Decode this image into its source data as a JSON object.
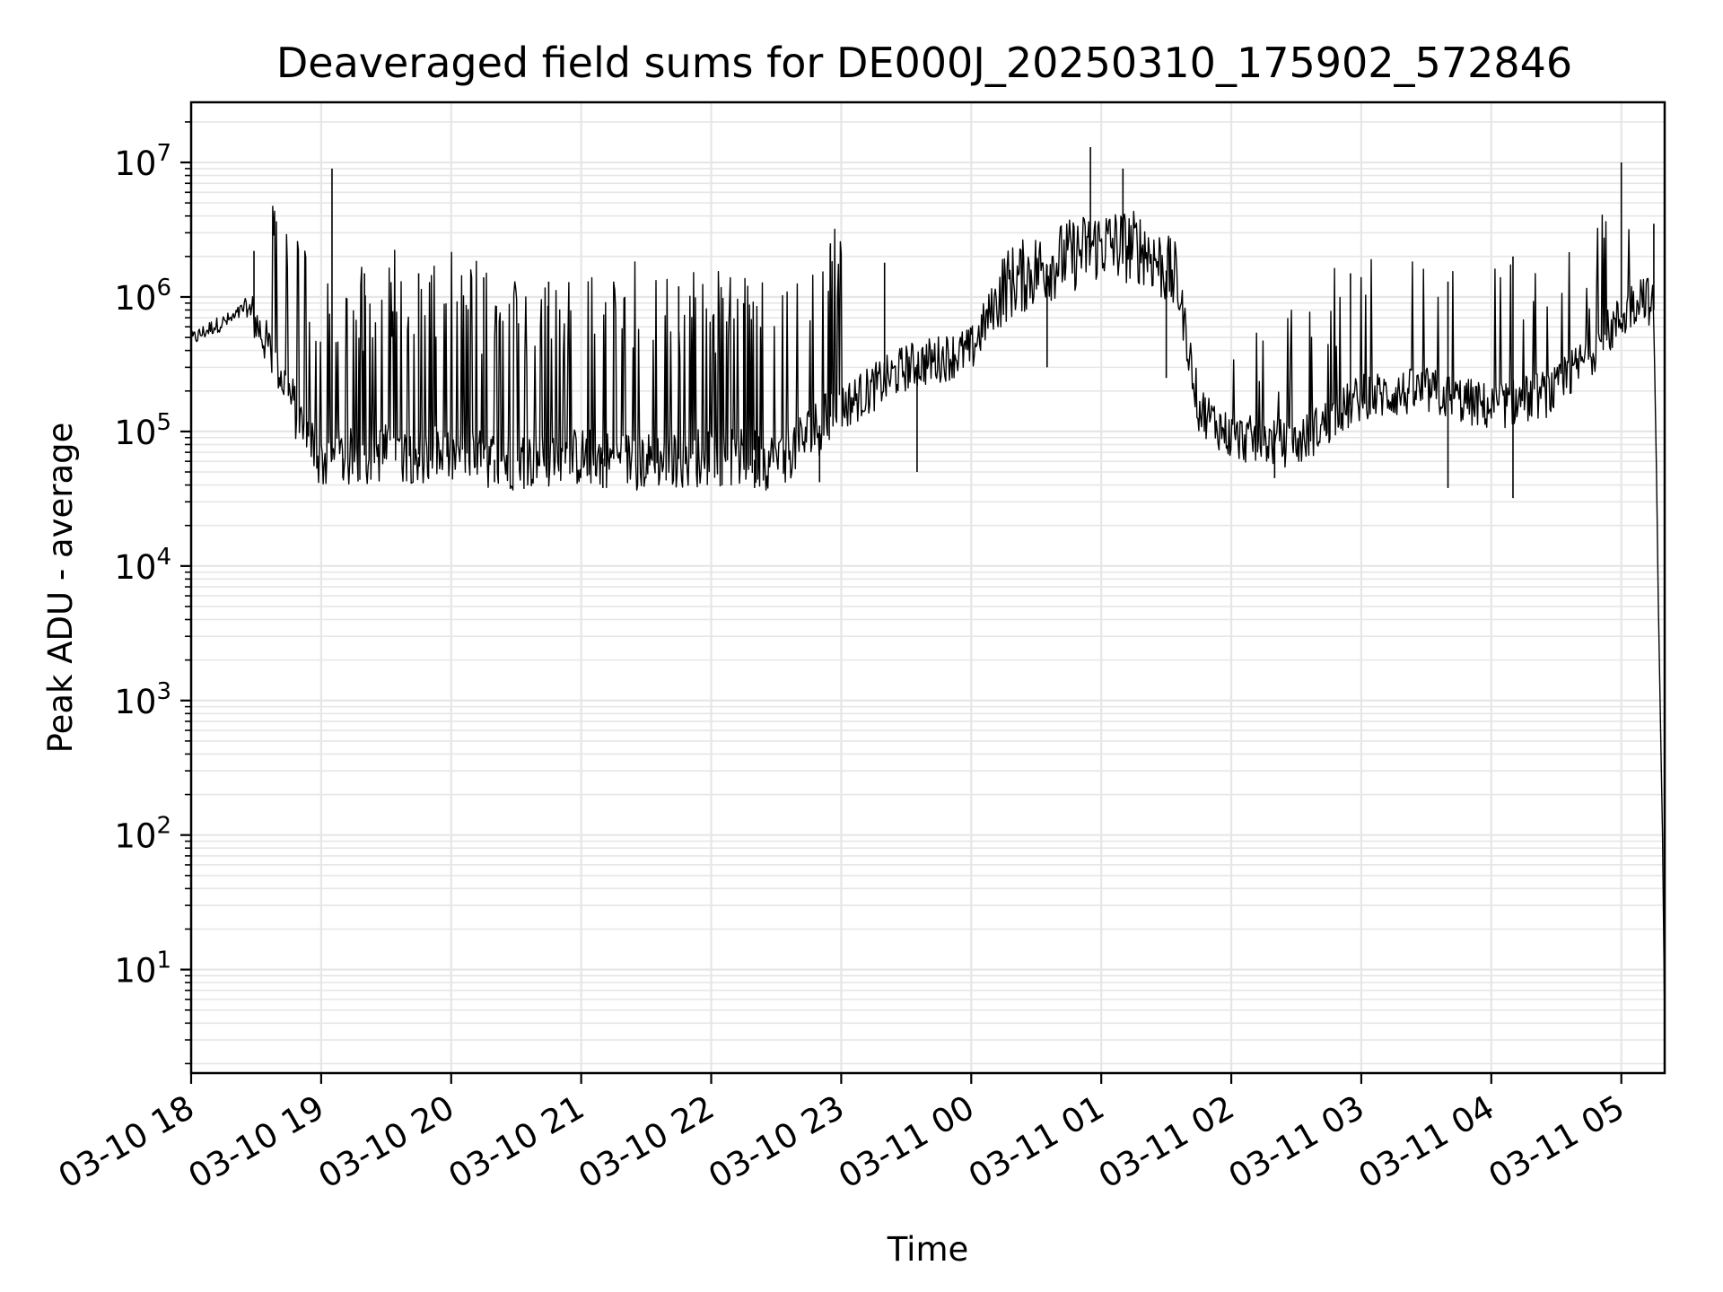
{
  "chart_data": {
    "type": "line",
    "title": "Deaveraged field sums for DE000J_20250310_175902_572846",
    "xlabel": "Time",
    "ylabel": "Peak ADU - average",
    "y_scale": "log",
    "grid": true,
    "line_color": "#000000",
    "grid_color": "#e6e6e6",
    "xlim": [
      "2025-03-10 18:00",
      "2025-03-11 05:20"
    ],
    "ylim": [
      1.7,
      28000000
    ],
    "x_ticks": [
      {
        "value": "2025-03-10 18:00",
        "label": "03-10 18"
      },
      {
        "value": "2025-03-10 19:00",
        "label": "03-10 19"
      },
      {
        "value": "2025-03-10 20:00",
        "label": "03-10 20"
      },
      {
        "value": "2025-03-10 21:00",
        "label": "03-10 21"
      },
      {
        "value": "2025-03-10 22:00",
        "label": "03-10 22"
      },
      {
        "value": "2025-03-10 23:00",
        "label": "03-10 23"
      },
      {
        "value": "2025-03-11 00:00",
        "label": "03-11 00"
      },
      {
        "value": "2025-03-11 01:00",
        "label": "03-11 01"
      },
      {
        "value": "2025-03-11 02:00",
        "label": "03-11 02"
      },
      {
        "value": "2025-03-11 03:00",
        "label": "03-11 03"
      },
      {
        "value": "2025-03-11 04:00",
        "label": "03-11 04"
      },
      {
        "value": "2025-03-11 05:00",
        "label": "03-11 05"
      }
    ],
    "y_ticks": [
      {
        "value": 10,
        "base": "10",
        "exp": "1"
      },
      {
        "value": 100,
        "base": "10",
        "exp": "2"
      },
      {
        "value": 1000,
        "base": "10",
        "exp": "3"
      },
      {
        "value": 10000,
        "base": "10",
        "exp": "4"
      },
      {
        "value": 100000,
        "base": "10",
        "exp": "5"
      },
      {
        "value": 1000000,
        "base": "10",
        "exp": "6"
      },
      {
        "value": 10000000,
        "base": "10",
        "exp": "7"
      }
    ],
    "series": [
      {
        "points": [
          [
            "2025-03-10 18:00",
            480000
          ],
          [
            "2025-03-10 18:10",
            600000
          ],
          [
            "2025-03-10 18:20",
            700000
          ],
          [
            "2025-03-10 18:25",
            850000
          ],
          [
            "2025-03-10 18:30",
            650000
          ],
          [
            "2025-03-10 18:40",
            300000
          ],
          [
            "2025-03-10 18:50",
            120000
          ],
          [
            "2025-03-10 19:00",
            60000
          ],
          [
            "2025-03-10 19:30",
            70000
          ],
          [
            "2025-03-10 20:00",
            65000
          ],
          [
            "2025-03-10 20:30",
            60000
          ],
          [
            "2025-03-10 21:00",
            65000
          ],
          [
            "2025-03-10 21:30",
            60000
          ],
          [
            "2025-03-10 22:00",
            65000
          ],
          [
            "2025-03-10 22:30",
            60000
          ],
          [
            "2025-03-10 23:00",
            150000
          ],
          [
            "2025-03-10 23:30",
            300000
          ],
          [
            "2025-03-11 00:00",
            400000
          ],
          [
            "2025-03-11 00:15",
            1200000
          ],
          [
            "2025-03-11 00:30",
            1600000
          ],
          [
            "2025-03-11 01:00",
            2500000
          ],
          [
            "2025-03-11 01:20",
            2300000
          ],
          [
            "2025-03-11 01:35",
            1300000
          ],
          [
            "2025-03-11 01:45",
            150000
          ],
          [
            "2025-03-11 02:00",
            90000
          ],
          [
            "2025-03-11 02:30",
            80000
          ],
          [
            "2025-03-11 03:00",
            180000
          ],
          [
            "2025-03-11 03:30",
            200000
          ],
          [
            "2025-03-11 04:00",
            150000
          ],
          [
            "2025-03-11 04:30",
            200000
          ],
          [
            "2025-03-11 05:00",
            700000
          ],
          [
            "2025-03-11 05:10",
            1100000
          ],
          [
            "2025-03-11 05:15",
            800000
          ],
          [
            "2025-03-11 05:20",
            4
          ]
        ],
        "spikes": [
          [
            "2025-03-10 18:29",
            2200000
          ],
          [
            "2025-03-10 19:05",
            9000000
          ],
          [
            "2025-03-10 19:20",
            1500000
          ],
          [
            "2025-03-10 19:45",
            1500000
          ],
          [
            "2025-03-10 20:15",
            1400000
          ],
          [
            "2025-03-10 20:45",
            1300000
          ],
          [
            "2025-03-10 21:15",
            1300000
          ],
          [
            "2025-03-10 21:45",
            1200000
          ],
          [
            "2025-03-10 22:15",
            900000
          ],
          [
            "2025-03-10 22:55",
            2500000
          ],
          [
            "2025-03-10 23:20",
            1800000
          ],
          [
            "2025-03-11 00:55",
            13000000
          ],
          [
            "2025-03-11 01:10",
            9000000
          ],
          [
            "2025-03-11 02:55",
            1500000
          ],
          [
            "2025-03-11 03:40",
            1300000
          ],
          [
            "2025-03-11 04:10",
            2000000
          ],
          [
            "2025-03-11 05:00",
            10000000
          ],
          [
            "2025-03-11 05:15",
            3500000
          ]
        ],
        "dips": [
          [
            "2025-03-10 19:10",
            45000
          ],
          [
            "2025-03-10 20:20",
            42000
          ],
          [
            "2025-03-10 21:10",
            38000
          ],
          [
            "2025-03-10 22:20",
            38000
          ],
          [
            "2025-03-10 22:50",
            42000
          ],
          [
            "2025-03-10 23:35",
            50000
          ],
          [
            "2025-03-11 00:35",
            300000
          ],
          [
            "2025-03-11 01:30",
            250000
          ],
          [
            "2025-03-11 02:20",
            45000
          ],
          [
            "2025-03-11 03:40",
            38000
          ],
          [
            "2025-03-11 04:10",
            32000
          ]
        ]
      }
    ]
  }
}
